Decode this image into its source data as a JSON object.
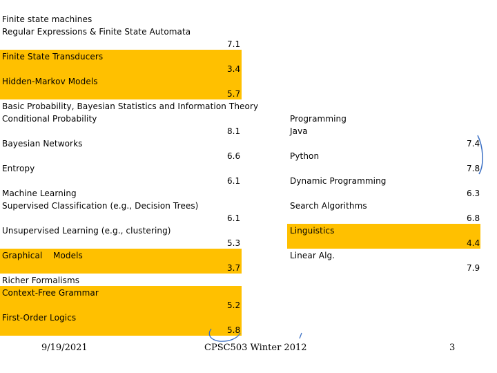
{
  "left_topics": {
    "fsm": "Finite state machines",
    "regex_fsa": "Regular Expressions & Finite State Automata",
    "fsa_score": "7.1",
    "fst": "Finite State Transducers",
    "fst_score": "3.4",
    "hmm": "Hidden-Markov Models",
    "hmm_score": "5.7",
    "prob_stats_info": "Basic Probability, Bayesian Statistics and Information Theory",
    "conditional_prob": "Conditional Probability",
    "conditional_prob_score": "8.1",
    "bayes_nets": "Bayesian Networks",
    "bayes_nets_score": "6.6",
    "entropy": "Entropy",
    "entropy_score": "6.1",
    "ml": "Machine Learning",
    "supervised": "Supervised Classification (e.g., Decision Trees)",
    "supervised_score": "6.1",
    "unsupervised": "Unsupervised Learning (e.g., clustering)",
    "unsupervised_score": "5.3",
    "graphical_models": "Graphical    Models",
    "graphical_models_score": "3.7",
    "richer_formalisms": "Richer Formalisms",
    "cfg": "Context-Free Grammar",
    "cfg_score": "5.2",
    "fol": "First-Order Logics",
    "fol_score": "5.8"
  },
  "right_topics": {
    "programming": "Programming",
    "java": "Java",
    "java_score": "7.4",
    "python": "Python",
    "python_score": "7.8",
    "dynamic_programming": "Dynamic Programming",
    "dynamic_programming_score": "6.3",
    "search_algorithms": "Search Algorithms",
    "search_algorithms_score": "6.8",
    "linguistics": "Linguistics",
    "linguistics_score": "4.4",
    "linear_alg": "Linear Alg.",
    "linear_alg_score": "7.9"
  },
  "footer": {
    "date": "9/19/2021",
    "course": "CPSC503 Winter 2012",
    "page_number": "3"
  },
  "colors": {
    "highlight": "#ffc000",
    "annotation": "#3a6fc4"
  }
}
